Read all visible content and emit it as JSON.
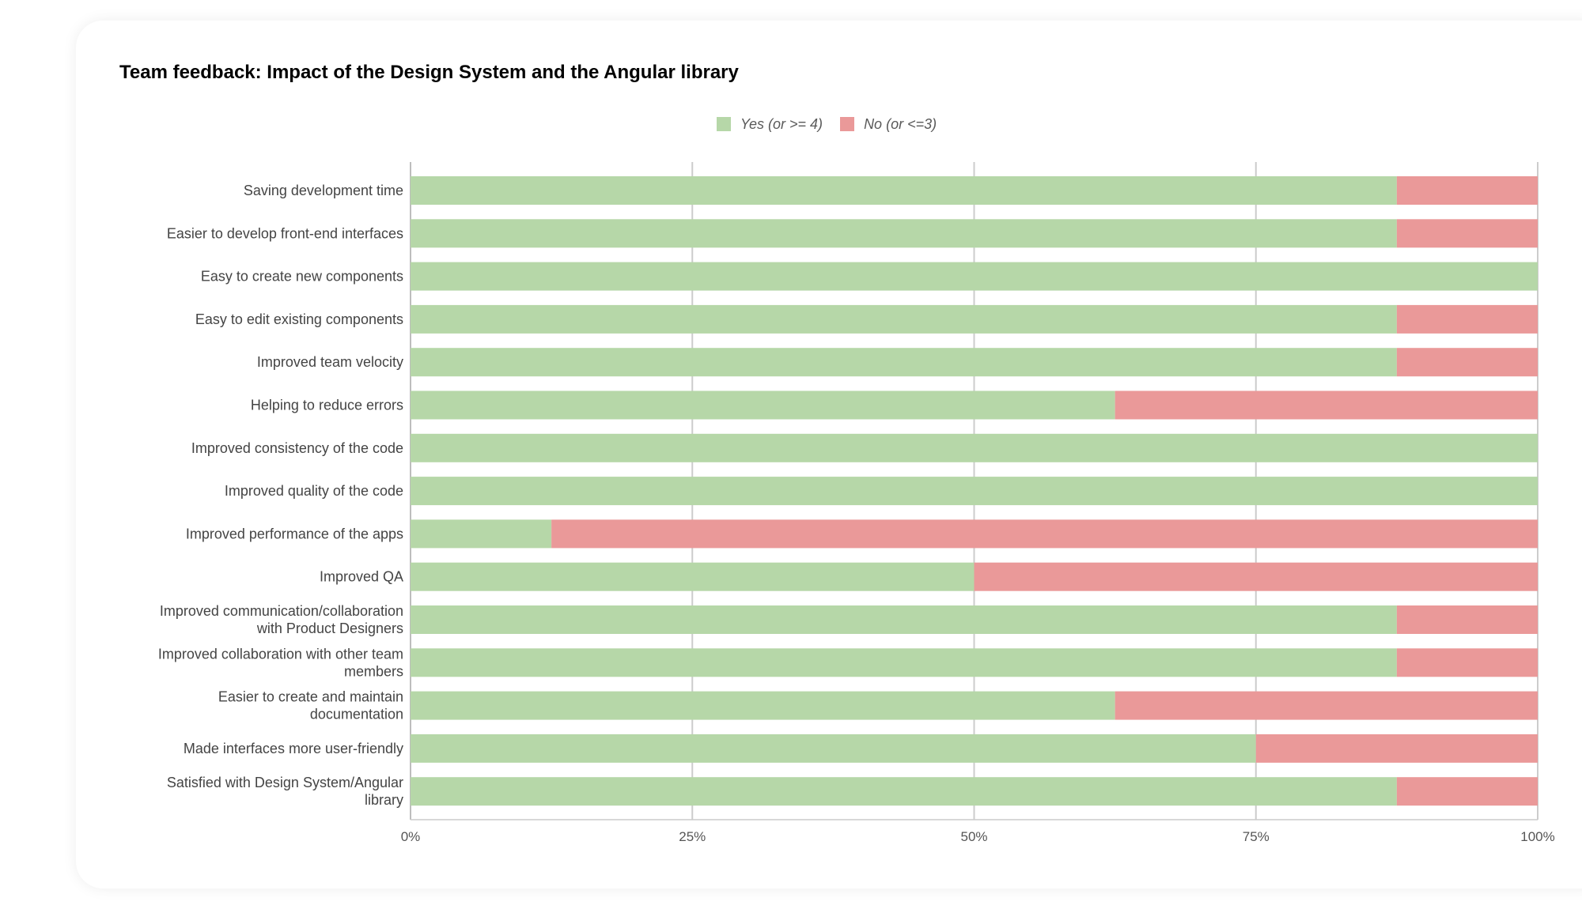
{
  "chart_data": {
    "type": "bar",
    "orientation": "horizontal",
    "stacked": true,
    "title": "Team feedback: Impact of the Design System and the Angular library",
    "xlabel": "",
    "ylabel": "",
    "xlim": [
      0,
      100
    ],
    "x_ticks": [
      "0%",
      "25%",
      "50%",
      "75%",
      "100%"
    ],
    "grid": true,
    "legend_position": "top",
    "categories": [
      [
        "Saving development time"
      ],
      [
        "Easier to develop front-end interfaces"
      ],
      [
        "Easy to create new components"
      ],
      [
        "Easy to edit existing components"
      ],
      [
        "Improved team velocity"
      ],
      [
        "Helping to reduce errors"
      ],
      [
        "Improved consistency of the code"
      ],
      [
        "Improved quality of the code"
      ],
      [
        "Improved performance of the apps"
      ],
      [
        "Improved QA"
      ],
      [
        "Improved communication/collaboration",
        "with Product Designers"
      ],
      [
        "Improved collaboration with other team",
        "members"
      ],
      [
        "Easier to create and maintain",
        "documentation"
      ],
      [
        "Made interfaces more user-friendly"
      ],
      [
        "Satisfied with Design System/Angular",
        "library"
      ]
    ],
    "series": [
      {
        "name": "Yes (or >= 4)",
        "color": "#b6d7a8",
        "values": [
          87.5,
          87.5,
          100,
          87.5,
          87.5,
          62.5,
          100,
          100,
          12.5,
          50,
          87.5,
          87.5,
          62.5,
          75,
          87.5
        ]
      },
      {
        "name": "No (or <=3)",
        "color": "#ea9999",
        "values": [
          12.5,
          12.5,
          0,
          12.5,
          12.5,
          37.5,
          0,
          0,
          87.5,
          50,
          12.5,
          12.5,
          37.5,
          25,
          12.5
        ]
      }
    ]
  }
}
